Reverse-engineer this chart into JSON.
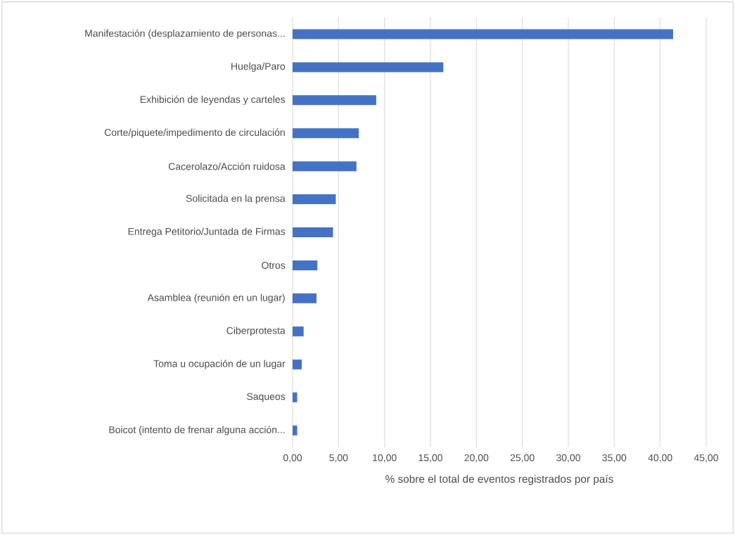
{
  "chart_data": {
    "type": "bar",
    "orientation": "horizontal",
    "xlabel": "% sobre el total de eventos registrados por país",
    "categories": [
      "Manifestación (desplazamiento de personas...",
      "Huelga/Paro",
      "Exhibición de leyendas y carteles",
      "Corte/piquete/impedimento de circulación",
      "Cacerolazo/Acción ruidosa",
      "Solicitada en la prensa",
      "Entrega Petitorio/Juntada de Firmas",
      "Otros",
      "Asamblea (reunión en un lugar)",
      "Ciberprotesta",
      "Toma u ocupación de un lugar",
      "Saqueos",
      "Boicot (intento de frenar alguna acción..."
    ],
    "values": [
      41.4,
      16.4,
      9.1,
      7.2,
      6.95,
      4.7,
      4.4,
      2.7,
      2.6,
      1.2,
      1.0,
      0.5,
      0.5
    ],
    "color": "#4472c4",
    "xlim": [
      0,
      45
    ],
    "xticks": [
      {
        "value": 0,
        "label": "0,00"
      },
      {
        "value": 5,
        "label": "5,00"
      },
      {
        "value": 10,
        "label": "10,00"
      },
      {
        "value": 15,
        "label": "15,00"
      },
      {
        "value": 20,
        "label": "20,00"
      },
      {
        "value": 25,
        "label": "25,00"
      },
      {
        "value": 30,
        "label": "30,00"
      },
      {
        "value": 35,
        "label": "35,00"
      },
      {
        "value": 40,
        "label": "40,00"
      },
      {
        "value": 45,
        "label": "45,00"
      }
    ],
    "grid": "x"
  }
}
